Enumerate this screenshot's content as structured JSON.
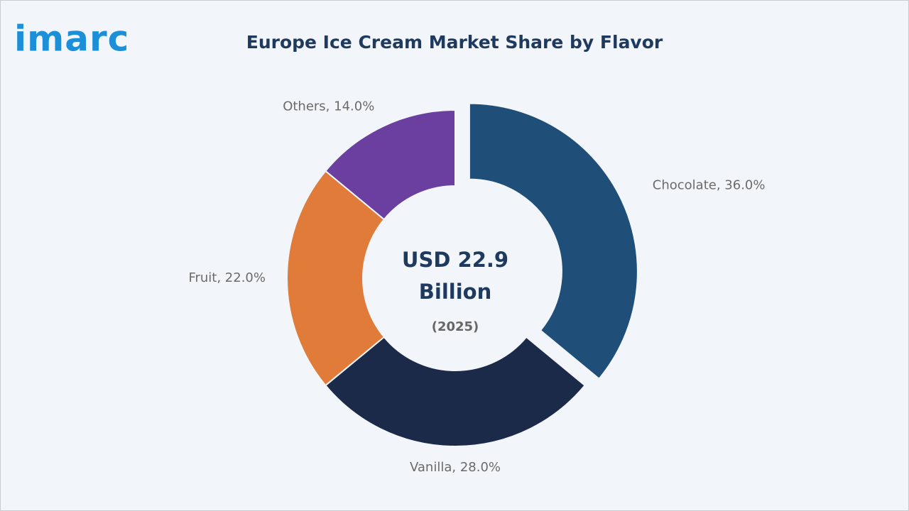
{
  "logo": "imarc",
  "chart_data": {
    "type": "donut",
    "title": "Europe Ice Cream Market Share by Flavor",
    "labels": [
      "Chocolate, 36.0%",
      "Vanilla, 28.0%",
      "Fruit, 22.0%",
      "Others, 14.0%"
    ],
    "values": [
      36,
      28,
      22,
      14
    ],
    "colors": [
      "#1f4e79",
      "#1c2a4a",
      "#e07b39",
      "#6a3fa0"
    ],
    "exploded": [
      true,
      false,
      false,
      false
    ],
    "center_text": [
      "USD 22.9",
      "Billion"
    ],
    "center_subtext": "(2025)"
  }
}
